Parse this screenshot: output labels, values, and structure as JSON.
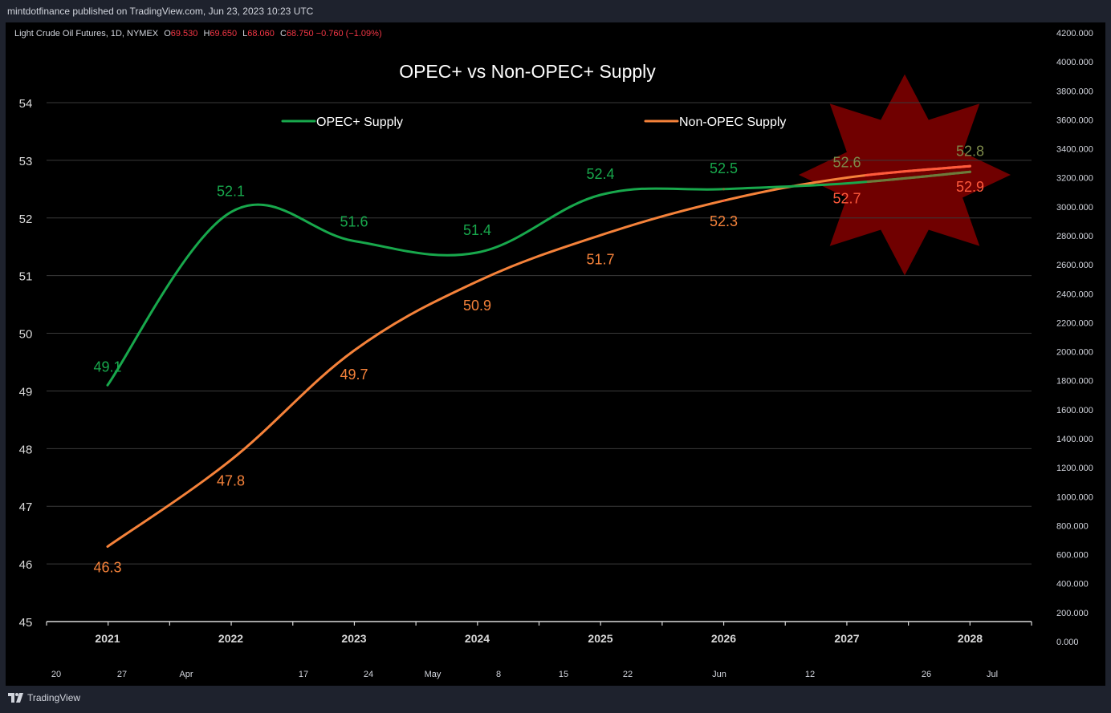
{
  "header": {
    "publisher_text": "mintdotfinance published on TradingView.com, Jun 23, 2023 10:23 UTC"
  },
  "symbol": {
    "name": "Light Crude Oil Futures, 1D, NYMEX",
    "o_label": "O",
    "o_value": "69.530",
    "h_label": "H",
    "h_value": "69.650",
    "l_label": "L",
    "l_value": "68.060",
    "c_label": "C",
    "c_value": "68.750",
    "change": "−0.760 (−1.09%)"
  },
  "footer": {
    "brand": "TradingView",
    "logo_icon": "tradingview-logo-icon"
  },
  "colors": {
    "opec": "#18a84c",
    "non_opec": "#f5823a",
    "highlight_star": "#7a0000",
    "negative": "#f23645"
  },
  "chart_data": {
    "type": "line",
    "title": "OPEC+ vs Non-OPEC+ Supply",
    "categories": [
      "2021",
      "2022",
      "2023",
      "2024",
      "2025",
      "2026",
      "2027",
      "2028"
    ],
    "series": [
      {
        "name": "OPEC+ Supply",
        "values": [
          49.1,
          52.1,
          51.6,
          51.4,
          52.4,
          52.5,
          52.6,
          52.8
        ],
        "labels": [
          "49.1",
          "52.1",
          "51.6",
          "51.4",
          "52.4",
          "52.5",
          "52.6",
          "52.8"
        ]
      },
      {
        "name": "Non-OPEC Supply",
        "values": [
          46.3,
          47.8,
          49.7,
          50.9,
          51.7,
          52.3,
          52.7,
          52.9
        ],
        "labels": [
          "46.3",
          "47.8",
          "49.7",
          "50.9",
          "51.7",
          "52.3",
          "52.7",
          "52.9"
        ]
      }
    ],
    "ylim": [
      45,
      54
    ],
    "y_ticks": [
      "45",
      "46",
      "47",
      "48",
      "49",
      "50",
      "51",
      "52",
      "53",
      "54"
    ],
    "right_axis_ticks": [
      "0.000",
      "200.000",
      "400.000",
      "600.000",
      "800.000",
      "1000.000",
      "1200.000",
      "1400.000",
      "1600.000",
      "1800.000",
      "2000.000",
      "2200.000",
      "2400.000",
      "2600.000",
      "2800.000",
      "3000.000",
      "3200.000",
      "3400.000",
      "3600.000",
      "3800.000",
      "4000.000",
      "4200.000"
    ],
    "right_axis_range": [
      0,
      4200
    ],
    "time_axis_labels": [
      "20",
      "27",
      "Apr",
      "17",
      "24",
      "May",
      "8",
      "15",
      "22",
      "Jun",
      "12",
      "26",
      "Jul"
    ],
    "grid": "horizontal",
    "legend": "top"
  }
}
